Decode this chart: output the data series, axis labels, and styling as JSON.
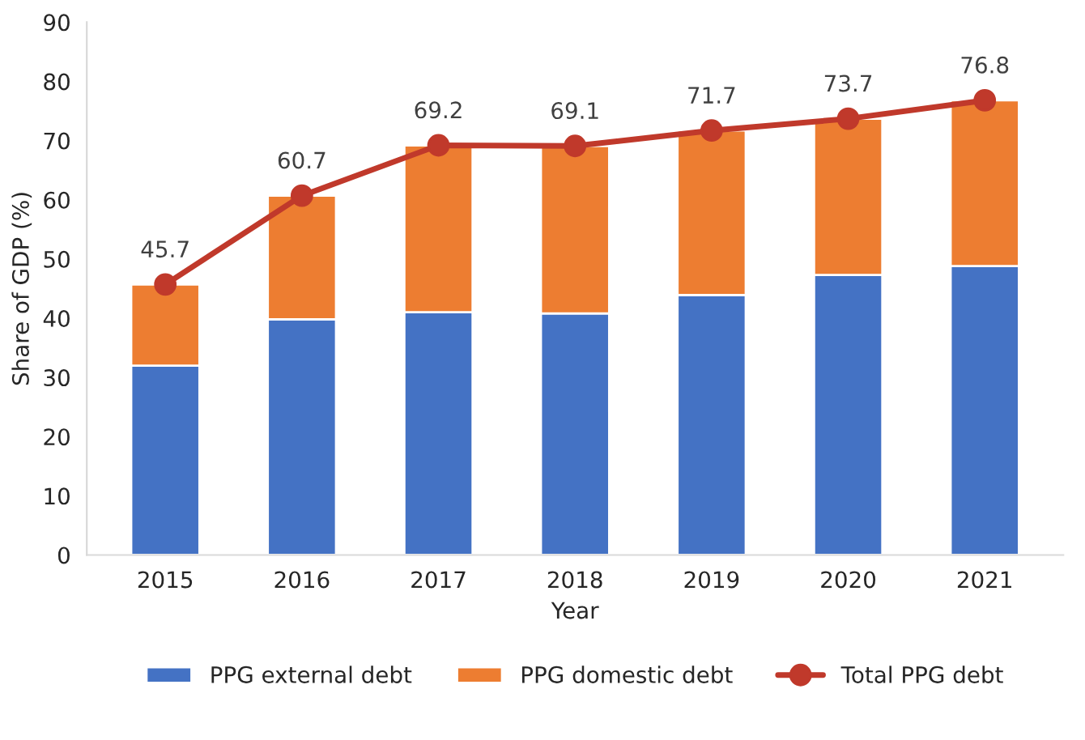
{
  "chart_data": {
    "type": "bar",
    "stacked": true,
    "xlabel": "Year",
    "ylabel": "Share of GDP (%)",
    "categories": [
      "2015",
      "2016",
      "2017",
      "2018",
      "2019",
      "2020",
      "2021"
    ],
    "series": [
      {
        "name": "PPG external debt",
        "color": "#4472c4",
        "values": [
          32.0,
          39.8,
          41.0,
          40.8,
          43.9,
          47.3,
          48.8
        ]
      },
      {
        "name": "PPG domestic debt",
        "color": "#ed7d31",
        "values": [
          13.7,
          20.9,
          28.2,
          28.3,
          27.8,
          26.4,
          28.0
        ]
      },
      {
        "name": "Total PPG debt",
        "type": "line",
        "color": "#c0392b",
        "marker": "circle",
        "values": [
          45.7,
          60.7,
          69.2,
          69.1,
          71.7,
          73.7,
          76.8
        ],
        "value_labels": [
          "45.7",
          "60.7",
          "69.2",
          "69.1",
          "71.7",
          "73.7",
          "76.8"
        ]
      }
    ],
    "ylim": [
      0,
      90
    ],
    "yticks": [
      0,
      10,
      20,
      30,
      40,
      50,
      60,
      70,
      80,
      90
    ],
    "legend": "bottom"
  }
}
